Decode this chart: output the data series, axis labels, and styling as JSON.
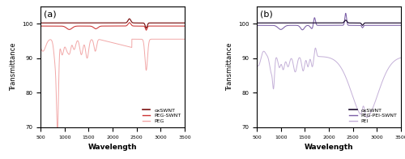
{
  "xlim": [
    500,
    3500
  ],
  "ylim": [
    70,
    105
  ],
  "yticks": [
    70,
    80,
    90,
    100
  ],
  "xticks": [
    500,
    1000,
    1500,
    2000,
    2500,
    3000,
    3500
  ],
  "xlabel": "Wavelength",
  "ylabel": "Transmittance",
  "panel_a_label": "(a)",
  "panel_b_label": "(b)",
  "oxSWNT_color_a": "#7B1010",
  "pegSWNT_color": "#CC3333",
  "peg_color": "#F2A8A8",
  "oxSWNT_color_b": "#1a0a2e",
  "pegpeiSWNT_color": "#7B5EA7",
  "pei_color": "#C4B0D8",
  "legend_a": [
    "oxSWNT",
    "PEG-SWNT",
    "PEG"
  ],
  "legend_b": [
    "oxSWNT",
    "PEG-PEI-SWNT",
    "PEI"
  ]
}
